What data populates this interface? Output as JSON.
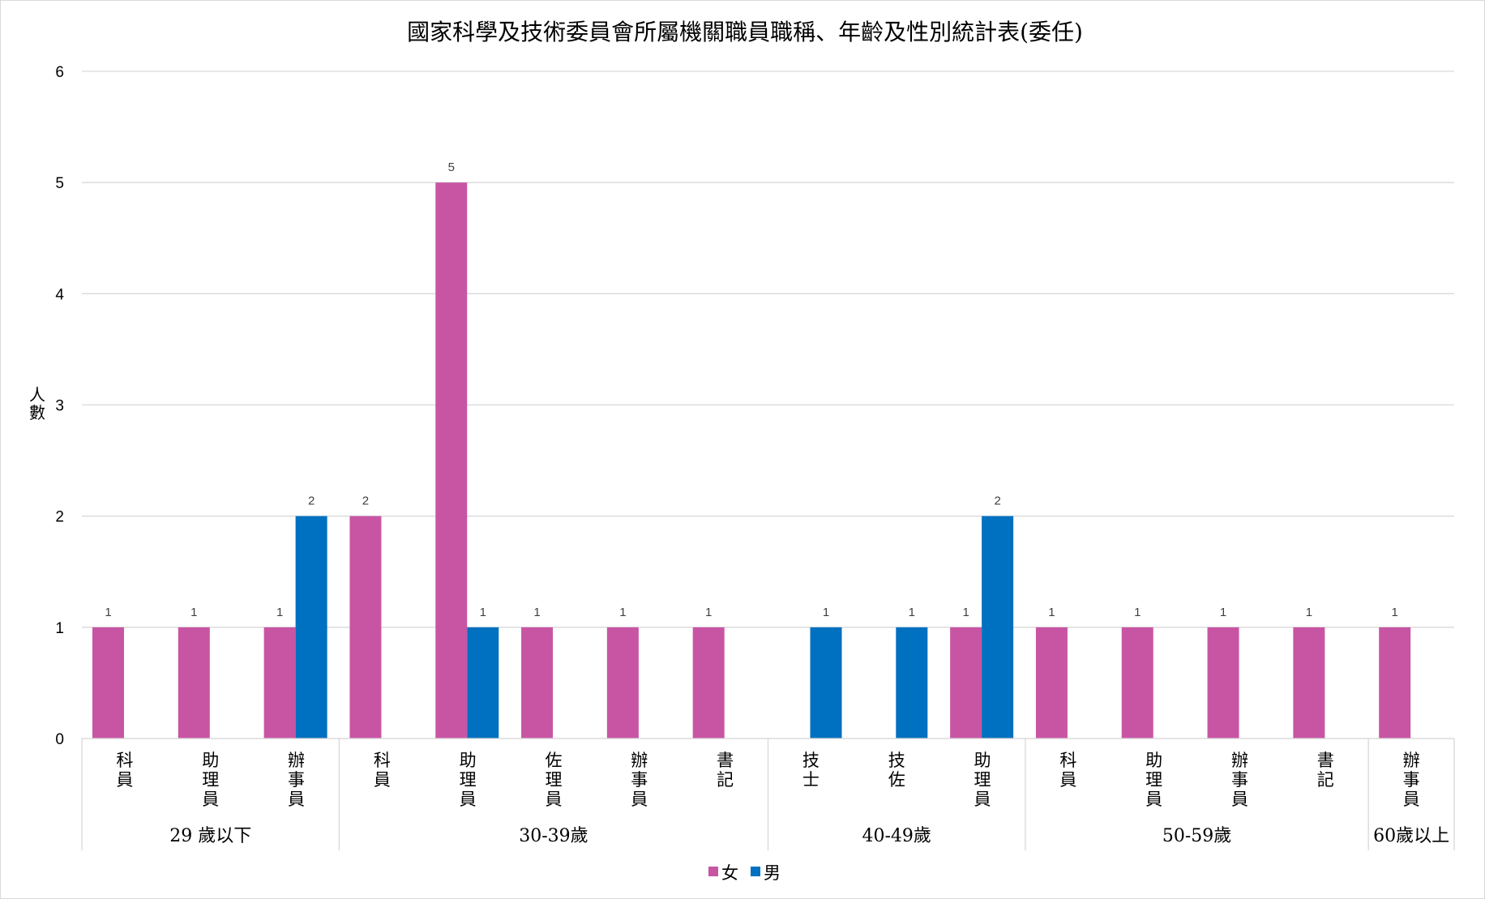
{
  "chart_data": {
    "type": "bar",
    "title": "國家科學及技術委員會所屬機關職員職稱、年齡及性別統計表(委任)",
    "ylabel": "人數",
    "ylim": [
      0,
      6
    ],
    "yticks": [
      0,
      1,
      2,
      3,
      4,
      5,
      6
    ],
    "grid": true,
    "legend": "bottom",
    "groups": [
      {
        "label": "29 歲以下",
        "categories": [
          "科員",
          "助理員",
          "辦事員"
        ]
      },
      {
        "label": "30-39歲",
        "categories": [
          "科員",
          "助理員",
          "佐理員",
          "辦事員",
          "書記"
        ]
      },
      {
        "label": "40-49歲",
        "categories": [
          "技士",
          "技佐",
          "助理員"
        ]
      },
      {
        "label": "50-59歲",
        "categories": [
          "科員",
          "助理員",
          "辦事員",
          "書記"
        ]
      },
      {
        "label": "60歲以上",
        "categories": [
          "辦事員"
        ]
      }
    ],
    "series": [
      {
        "name": "女",
        "color": "#c855a4",
        "values": [
          1,
          1,
          1,
          2,
          5,
          1,
          1,
          1,
          null,
          null,
          1,
          1,
          1,
          1,
          1,
          1
        ]
      },
      {
        "name": "男",
        "color": "#0070c0",
        "values": [
          null,
          null,
          2,
          null,
          1,
          null,
          null,
          null,
          1,
          1,
          2,
          null,
          null,
          null,
          null,
          null
        ]
      }
    ]
  }
}
